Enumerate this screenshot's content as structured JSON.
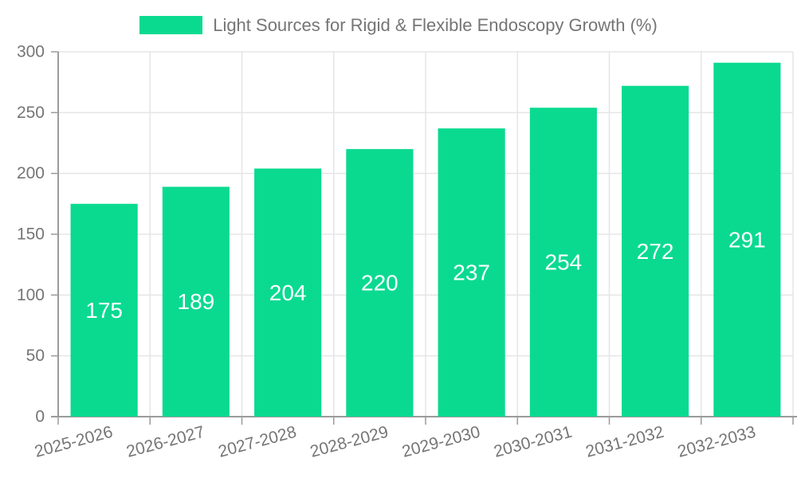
{
  "legend": {
    "items": [
      {
        "label": "Light Sources for Rigid & Flexible Endoscopy Growth (%)",
        "swatch_color": "#0ADA90"
      }
    ]
  },
  "chart_data": {
    "type": "bar",
    "title": "Light Sources for Rigid & Flexible Endoscopy Growth (%)",
    "categories": [
      "2025-2026",
      "2026-2027",
      "2027-2028",
      "2028-2029",
      "2029-2030",
      "2030-2031",
      "2031-2032",
      "2032-2033"
    ],
    "values": [
      175,
      189,
      204,
      220,
      237,
      254,
      272,
      291
    ],
    "xlabel": "",
    "ylabel": "",
    "ylim": [
      0,
      300
    ],
    "yticks": [
      0,
      50,
      100,
      150,
      200,
      250,
      300
    ],
    "grid": true,
    "legend_position": "top",
    "x_label_rotation_deg": -15,
    "value_labels_position": "inside-center",
    "colors": {
      "bar": "#0ADA90",
      "grid_line": "#e5e5e5",
      "axis_line": "#9b9b9b",
      "tick": "#9b9b9b",
      "axis_text": "#757575",
      "value_text": "#ffffff",
      "legend_text": "#757575",
      "background": "#ffffff"
    }
  }
}
